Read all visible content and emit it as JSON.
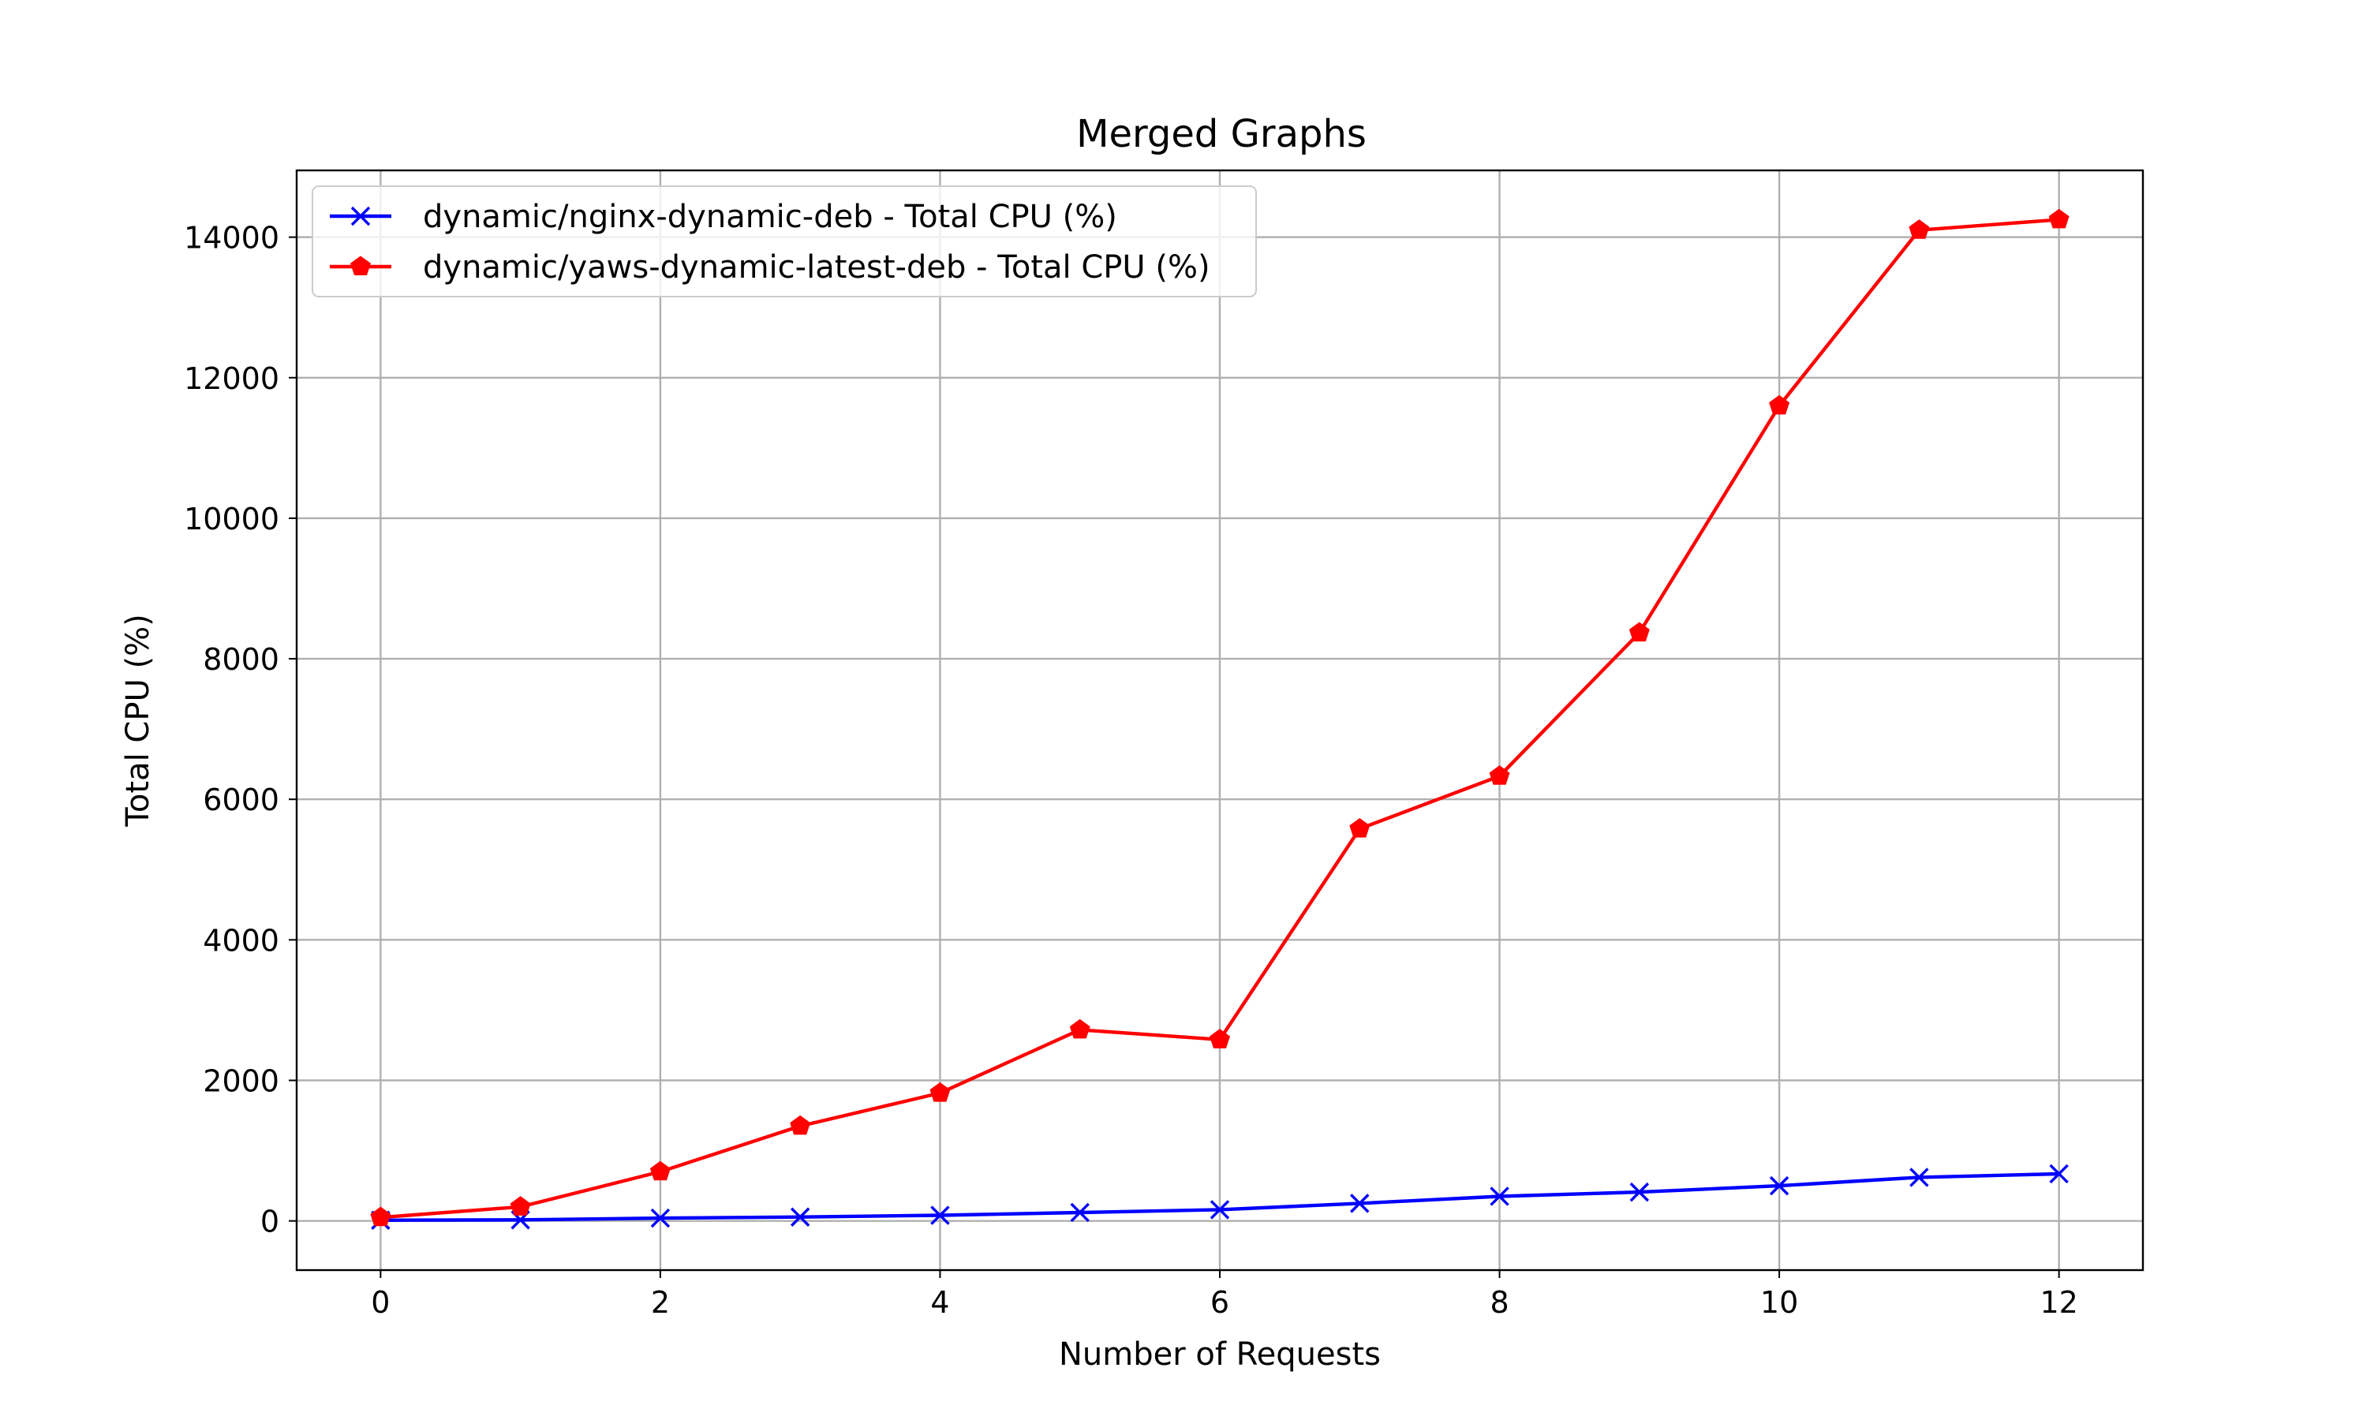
{
  "chart_data": {
    "type": "line",
    "title": "Merged Graphs",
    "xlabel": "Number of Requests",
    "ylabel": "Total CPU (%)",
    "xlim": [
      -0.6,
      12.6
    ],
    "ylim": [
      -700,
      14950
    ],
    "xticks": [
      0,
      2,
      4,
      6,
      8,
      10,
      12
    ],
    "yticks": [
      0,
      2000,
      4000,
      6000,
      8000,
      10000,
      12000,
      14000
    ],
    "grid": true,
    "legend_position": "top-left",
    "series": [
      {
        "name": "dynamic/nginx-dynamic-deb - Total CPU (%)",
        "color": "#0000ff",
        "marker": "x",
        "x": [
          0,
          1,
          2,
          3,
          4,
          5,
          6,
          7,
          8,
          9,
          10,
          11,
          12
        ],
        "y": [
          10,
          15,
          40,
          55,
          80,
          120,
          160,
          250,
          350,
          410,
          500,
          620,
          670
        ]
      },
      {
        "name": "dynamic/yaws-dynamic-latest-deb - Total CPU (%)",
        "color": "#ff0000",
        "marker": "pentagon",
        "x": [
          0,
          1,
          2,
          3,
          4,
          5,
          6,
          7,
          8,
          9,
          10,
          11,
          12
        ],
        "y": [
          50,
          200,
          700,
          1350,
          1820,
          2720,
          2580,
          5580,
          6330,
          8370,
          11600,
          14100,
          14250
        ]
      }
    ]
  }
}
